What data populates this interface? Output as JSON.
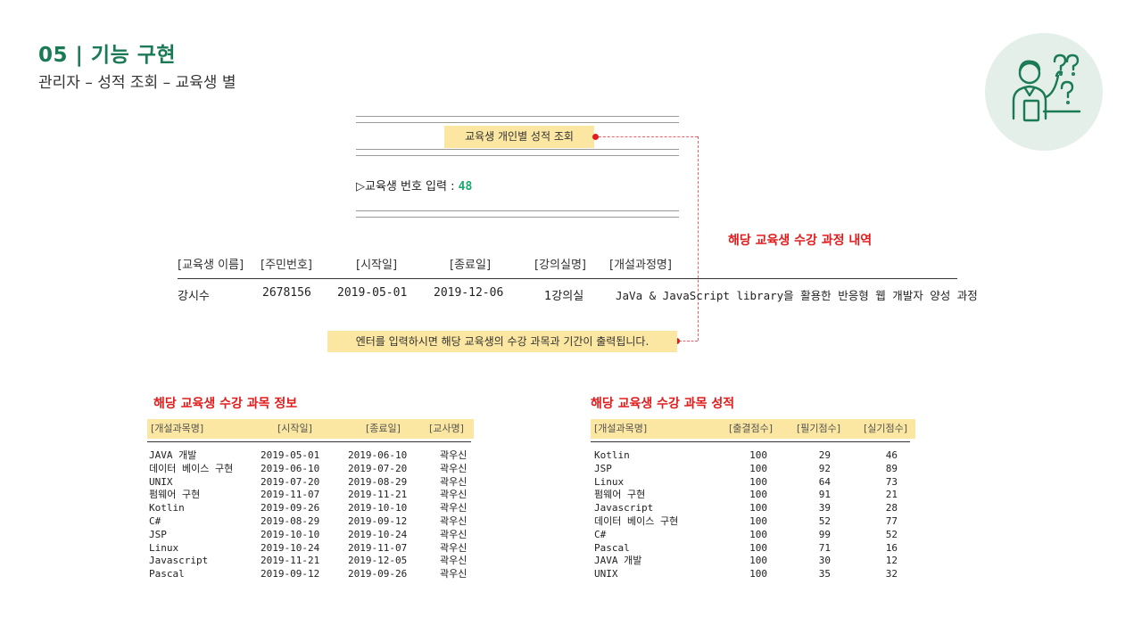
{
  "header": {
    "title": "05 | 기능 구현",
    "subtitle": "관리자 – 성적 조회 – 교육생 별"
  },
  "console": {
    "separator": "==============================",
    "title": "교육생 개인별 성적 조회",
    "prompt_label": "▷교육생 번호 입력 :",
    "prompt_value": "48"
  },
  "annotations": {
    "course_history": "해당 교육생 수강 과정 내역",
    "subject_info": "해당 교육생 수강 과목 정보",
    "subject_scores": "해당 교육생 수강 과목 성적",
    "enter_message": "엔터를 입력하시면 해당 교육생의 수강 과목과 기간이 출력됩니다."
  },
  "course_table": {
    "headers": [
      "[교육생 이름]",
      "[주민번호]",
      "[시작일]",
      "[종료일]",
      "[강의실명]",
      "[개설과정명]"
    ],
    "row": {
      "name": "강시수",
      "ssn": "2678156",
      "start": "2019-05-01",
      "end": "2019-12-06",
      "room": "1강의실",
      "course": "JaVa & JavaScript library을 활용한 반응형 웹 개발자 양성 과정"
    }
  },
  "subject_table": {
    "headers": [
      "[개설과목명]",
      "[시작일]",
      "[종료일]",
      "[교사명]"
    ],
    "rows": [
      [
        "JAVA 개발",
        "2019-05-01",
        "2019-06-10",
        "곽우신"
      ],
      [
        "데이터 베이스 구현",
        "2019-06-10",
        "2019-07-20",
        "곽우신"
      ],
      [
        "UNIX",
        "2019-07-20",
        "2019-08-29",
        "곽우신"
      ],
      [
        "펌웨어 구현",
        "2019-11-07",
        "2019-11-21",
        "곽우신"
      ],
      [
        "Kotlin",
        "2019-09-26",
        "2019-10-10",
        "곽우신"
      ],
      [
        "C#",
        "2019-08-29",
        "2019-09-12",
        "곽우신"
      ],
      [
        "JSP",
        "2019-10-10",
        "2019-10-24",
        "곽우신"
      ],
      [
        "Linux",
        "2019-10-24",
        "2019-11-07",
        "곽우신"
      ],
      [
        "Javascript",
        "2019-11-21",
        "2019-12-05",
        "곽우신"
      ],
      [
        "Pascal",
        "2019-09-12",
        "2019-09-26",
        "곽우신"
      ]
    ]
  },
  "score_table": {
    "headers": [
      "[개설과목명]",
      "[출결점수]",
      "[필기점수]",
      "[실기점수]"
    ],
    "rows": [
      [
        "Kotlin",
        "100",
        "29",
        "46"
      ],
      [
        "JSP",
        "100",
        "92",
        "89"
      ],
      [
        "Linux",
        "100",
        "64",
        "73"
      ],
      [
        "펌웨어 구현",
        "100",
        "91",
        "21"
      ],
      [
        "Javascript",
        "100",
        "39",
        "28"
      ],
      [
        "데이터 베이스 구현",
        "100",
        "52",
        "77"
      ],
      [
        "C#",
        "100",
        "99",
        "52"
      ],
      [
        "Pascal",
        "100",
        "71",
        "16"
      ],
      [
        "JAVA 개발",
        "100",
        "30",
        "12"
      ],
      [
        "UNIX",
        "100",
        "35",
        "32"
      ]
    ]
  },
  "colors": {
    "accent_green": "#1a7a55",
    "highlight": "#fbe7a1",
    "annotation_red": "#e21c1c"
  },
  "icons": {
    "mascot": "confused-student-icon"
  }
}
